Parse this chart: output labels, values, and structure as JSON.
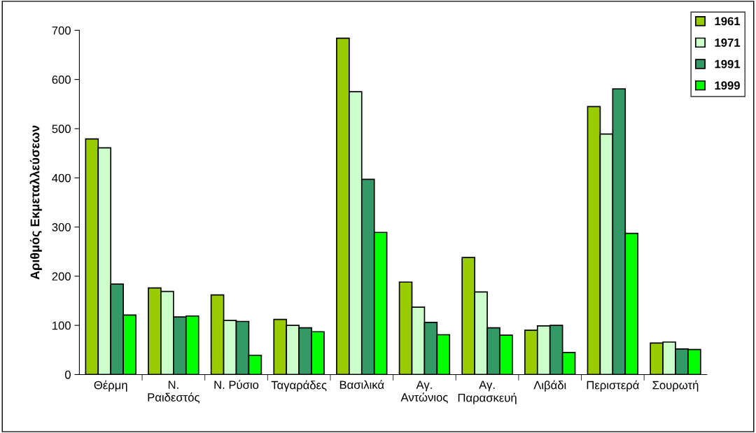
{
  "chart_data": {
    "type": "bar",
    "ylabel": "Αριθμός Εκμεταλλεύσεων",
    "categories": [
      "Θέρμη",
      "Ν.\nΡαιδεστός",
      "Ν. Ρύσιο",
      "Ταγαράδες",
      "Βασιλικά",
      "Αγ.\nΑντώνιος",
      "Αγ.\nΠαρασκευή",
      "Λιβάδι",
      "Περιστερά",
      "Σουρωτή"
    ],
    "series": [
      {
        "name": "1961",
        "color": "#99cc00",
        "values": [
          479,
          176,
          162,
          112,
          684,
          188,
          238,
          90,
          545,
          64
        ]
      },
      {
        "name": "1971",
        "color": "#ccffcc",
        "values": [
          461,
          169,
          110,
          100,
          575,
          137,
          168,
          99,
          489,
          66
        ]
      },
      {
        "name": "1991",
        "color": "#339966",
        "values": [
          184,
          117,
          108,
          95,
          397,
          106,
          95,
          100,
          581,
          52
        ]
      },
      {
        "name": "1999",
        "color": "#00ff00",
        "values": [
          121,
          119,
          39,
          87,
          289,
          81,
          80,
          45,
          287,
          51
        ]
      }
    ],
    "ylim": [
      0,
      700
    ],
    "yticks": [
      0,
      100,
      200,
      300,
      400,
      500,
      600,
      700
    ],
    "grid": false,
    "legend": "top right"
  }
}
